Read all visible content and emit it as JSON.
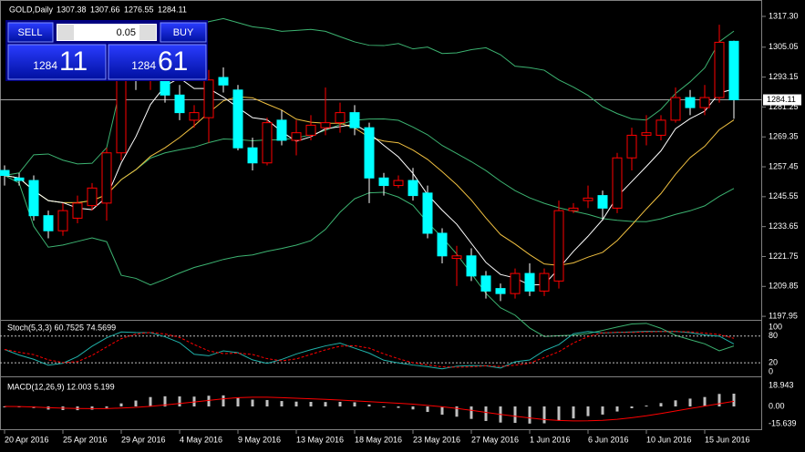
{
  "chart_data": {
    "type": "candlestick",
    "title": "GOLD,Daily",
    "header_values": [
      1307.38,
      1307.66,
      1276.55,
      1284.11
    ],
    "categories": [
      "20 Apr 2016",
      null,
      null,
      null,
      "25 Apr 2016",
      null,
      null,
      null,
      "29 Apr 2016",
      null,
      null,
      null,
      "4 May 2016",
      null,
      null,
      null,
      "9 May 2016",
      null,
      null,
      null,
      "13 May 2016",
      null,
      null,
      null,
      "18 May 2016",
      null,
      null,
      null,
      "23 May 2016",
      null,
      null,
      null,
      "27 May 2016",
      null,
      null,
      null,
      "1 Jun 2016",
      null,
      null,
      null,
      "6 Jun 2016",
      null,
      null,
      null,
      "10 Jun 2016",
      null,
      null,
      null,
      "15 Jun 2016",
      null,
      null
    ],
    "open": [
      1256,
      1253,
      1252,
      1238,
      1232,
      1237,
      1242,
      1243,
      1263,
      1295,
      1292,
      1292,
      1286,
      1276,
      1277,
      1293,
      1288,
      1265,
      1259,
      1276,
      1268,
      1270,
      1273,
      1275,
      1279,
      1273,
      1253,
      1250,
      1252,
      1247,
      1231,
      1221,
      1222,
      1214,
      1209,
      1207,
      1215,
      1208,
      1212,
      1240,
      1244,
      1246,
      1241,
      1261,
      1270,
      1270,
      1276,
      1285,
      1281,
      1285,
      1307.38
    ],
    "high": [
      1258,
      1255,
      1254,
      1240,
      1243,
      1246,
      1251,
      1265,
      1305,
      1310,
      1312,
      1300,
      1290,
      1282,
      1296,
      1297,
      1290,
      1269,
      1277,
      1280,
      1276,
      1278,
      1289,
      1283,
      1282,
      1275,
      1255,
      1254,
      1257,
      1250,
      1233,
      1226,
      1225,
      1216,
      1211,
      1217,
      1219,
      1217,
      1244,
      1243,
      1250,
      1248,
      1263,
      1273,
      1278,
      1278,
      1289,
      1288,
      1290,
      1314,
      1307.66
    ],
    "low": [
      1250,
      1250,
      1236,
      1229,
      1230,
      1235,
      1240,
      1236,
      1260,
      1288,
      1288,
      1283,
      1276,
      1273,
      1267,
      1287,
      1264,
      1256,
      1258,
      1266,
      1262,
      1268,
      1270,
      1271,
      1270,
      1243,
      1246,
      1249,
      1244,
      1229,
      1219,
      1210,
      1212,
      1205,
      1204,
      1205,
      1206,
      1206,
      1209,
      1239,
      1241,
      1236,
      1239,
      1256,
      1266,
      1268,
      1275,
      1278,
      1278,
      1283,
      1276.55
    ],
    "close": [
      1254,
      1252,
      1238,
      1232,
      1240,
      1243,
      1249,
      1263,
      1300,
      1292,
      1307,
      1286,
      1279,
      1279,
      1292,
      1290,
      1265,
      1259,
      1275,
      1268,
      1271,
      1274,
      1275,
      1279,
      1273,
      1253,
      1250,
      1252,
      1246,
      1231,
      1222,
      1222,
      1214,
      1208,
      1207,
      1215,
      1208,
      1215,
      1240,
      1241,
      1245,
      1241,
      1261,
      1270,
      1271,
      1276,
      1285,
      1281,
      1285,
      1307,
      1284.11
    ],
    "bull_color": "#ff0000",
    "bear_color": "#00ffff",
    "ylim": [
      1196.9,
      1323.1
    ],
    "yticks": [
      {
        "value": 1317.3,
        "label": "1317.30"
      },
      1305.05,
      1293.15,
      1281.25,
      1269.35,
      1257.45,
      1245.55,
      1233.65,
      1221.75,
      1209.85,
      1197.95
    ],
    "current_price": 1284.11,
    "stochastic": {
      "title": "Stoch(5,3,3) 60.7525 74.5699",
      "ylim": [
        -8.2,
        112.2
      ],
      "yticks": [
        0,
        20,
        80,
        100
      ],
      "levels": [
        20,
        80
      ],
      "color": "#20b2aa",
      "signal_color": "#ff0000"
    },
    "macd": {
      "title": "MACD(12,26,9) 12.003 5.199",
      "ylim": [
        -19.76,
        24.71
      ],
      "yticks": [
        18.943,
        {
          "value": 0,
          "label": "0.00"
        },
        -15.639
      ],
      "color": "#c0c0c0",
      "signal_color": "#ff0000"
    },
    "trade_panel": {
      "sell": "SELL",
      "buy": "BUY",
      "lot": "0.05",
      "bid_big": "1284",
      "bid_small": "11",
      "ask_big": "1284",
      "ask_small": "61"
    }
  }
}
